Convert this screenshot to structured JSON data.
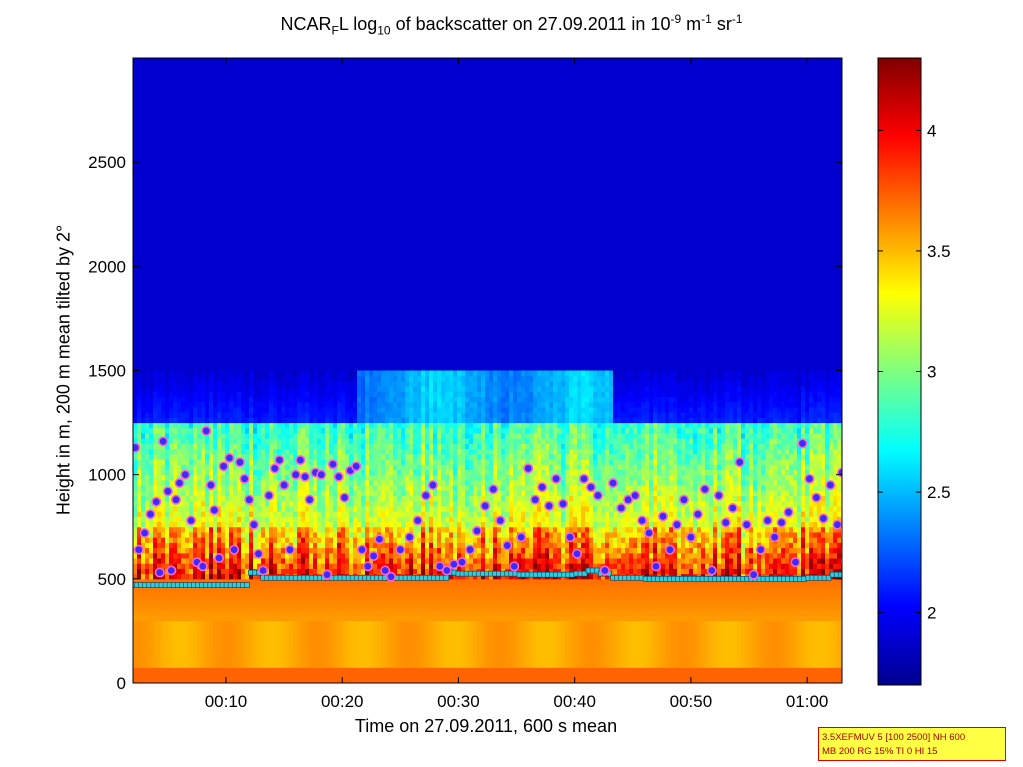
{
  "title": {
    "part1": "NCAR",
    "sub1": "F",
    "part2": "L log",
    "sub2": "10",
    "part3": " of backscatter on 27.09.2011 in 10",
    "sup1": "-9",
    "part4": " m",
    "sup2": "-1",
    "part5": " sr",
    "sup3": "-1"
  },
  "xlabel": "Time on 27.09.2011, 600 s mean",
  "ylabel": "Height in m, 200 m mean tilted by 2°",
  "info_box": {
    "line1": "3.5XEFMUV 5 [100 2500] NH 600",
    "line2": "MB 200 RG 15% TI 0 HI 15"
  },
  "chart_data": {
    "type": "heatmap",
    "x_ticks": [
      "00:10",
      "00:20",
      "00:30",
      "00:40",
      "00:50",
      "01:00"
    ],
    "x_tick_minutes": [
      10,
      20,
      30,
      40,
      50,
      60
    ],
    "xlim_minutes": [
      2,
      63
    ],
    "y_ticks": [
      0,
      500,
      1000,
      1500,
      2000,
      2500
    ],
    "ylim": [
      0,
      3000
    ],
    "colorbar": {
      "ticks": [
        2,
        2.5,
        3,
        3.5,
        4
      ],
      "tick_labels": [
        "2",
        "2.5",
        "3",
        "3.5",
        "4"
      ],
      "range": [
        1.7,
        4.3
      ],
      "colormap": "jet"
    },
    "layers": {
      "surface_aerosol_top_m": 500,
      "mixed_layer_top_m": 750,
      "residual_layer_top_m": 1250,
      "elevated_layer_m": [
        1250,
        1500
      ],
      "elevated_layer_time_minutes": [
        21,
        43
      ]
    },
    "cloud_base_series": {
      "name": "cyan squares",
      "x": [
        2,
        11,
        12,
        13,
        18,
        28,
        29,
        30,
        35,
        40,
        41,
        42,
        43,
        46,
        50,
        55,
        60,
        62,
        63
      ],
      "y": [
        470,
        470,
        530,
        505,
        505,
        505,
        530,
        525,
        520,
        525,
        540,
        525,
        505,
        500,
        500,
        500,
        505,
        520,
        520
      ]
    },
    "aerosol_layer_series": {
      "name": "magenta circles",
      "x": [
        2.2,
        2.5,
        3,
        3.5,
        4,
        4.3,
        4.6,
        5,
        5.3,
        5.7,
        6,
        6.5,
        7,
        7.5,
        8,
        8.3,
        8.7,
        9,
        9.4,
        9.8,
        10.3,
        10.7,
        11.2,
        11.6,
        12,
        12.4,
        12.8,
        13.2,
        13.7,
        14.2,
        14.6,
        15,
        15.5,
        16,
        16.4,
        16.8,
        17.2,
        17.7,
        18.2,
        18.7,
        19.2,
        19.7,
        20.2,
        20.7,
        21.2,
        21.7,
        22.2,
        22.7,
        23.2,
        23.7,
        24.2,
        25,
        25.8,
        26.5,
        27.2,
        27.8,
        28.4,
        29,
        29.6,
        30.3,
        31,
        31.6,
        32.3,
        33,
        33.6,
        34.2,
        34.8,
        35.4,
        36,
        36.6,
        37.2,
        37.8,
        38.4,
        39,
        39.6,
        40.2,
        40.8,
        41.4,
        42,
        42.6,
        43.3,
        44,
        44.6,
        45.2,
        45.8,
        46.4,
        47,
        47.6,
        48.2,
        48.8,
        49.4,
        50,
        50.6,
        51.2,
        51.8,
        52.4,
        53,
        53.6,
        54.2,
        54.8,
        55.4,
        56,
        56.6,
        57.2,
        57.8,
        58.4,
        59,
        59.6,
        60.2,
        60.8,
        61.4,
        62,
        62.6,
        63
      ],
      "y": [
        1130,
        640,
        720,
        810,
        870,
        530,
        1160,
        920,
        540,
        880,
        960,
        1000,
        780,
        580,
        560,
        1210,
        950,
        830,
        600,
        1040,
        1080,
        640,
        1060,
        980,
        880,
        760,
        620,
        540,
        900,
        1030,
        1070,
        950,
        640,
        1000,
        1070,
        990,
        880,
        1010,
        1000,
        520,
        1050,
        990,
        890,
        1020,
        1040,
        640,
        560,
        610,
        690,
        540,
        510,
        640,
        700,
        780,
        900,
        950,
        560,
        540,
        570,
        580,
        640,
        730,
        850,
        930,
        780,
        660,
        560,
        700,
        1030,
        880,
        940,
        850,
        980,
        860,
        700,
        620,
        980,
        940,
        900,
        540,
        960,
        840,
        880,
        900,
        780,
        720,
        560,
        800,
        640,
        760,
        880,
        700,
        810,
        930,
        540,
        900,
        770,
        840,
        1060,
        760,
        520,
        640,
        780,
        700,
        770,
        820,
        580,
        1150,
        980,
        890,
        790,
        950,
        760,
        1010,
        660
      ]
    }
  }
}
